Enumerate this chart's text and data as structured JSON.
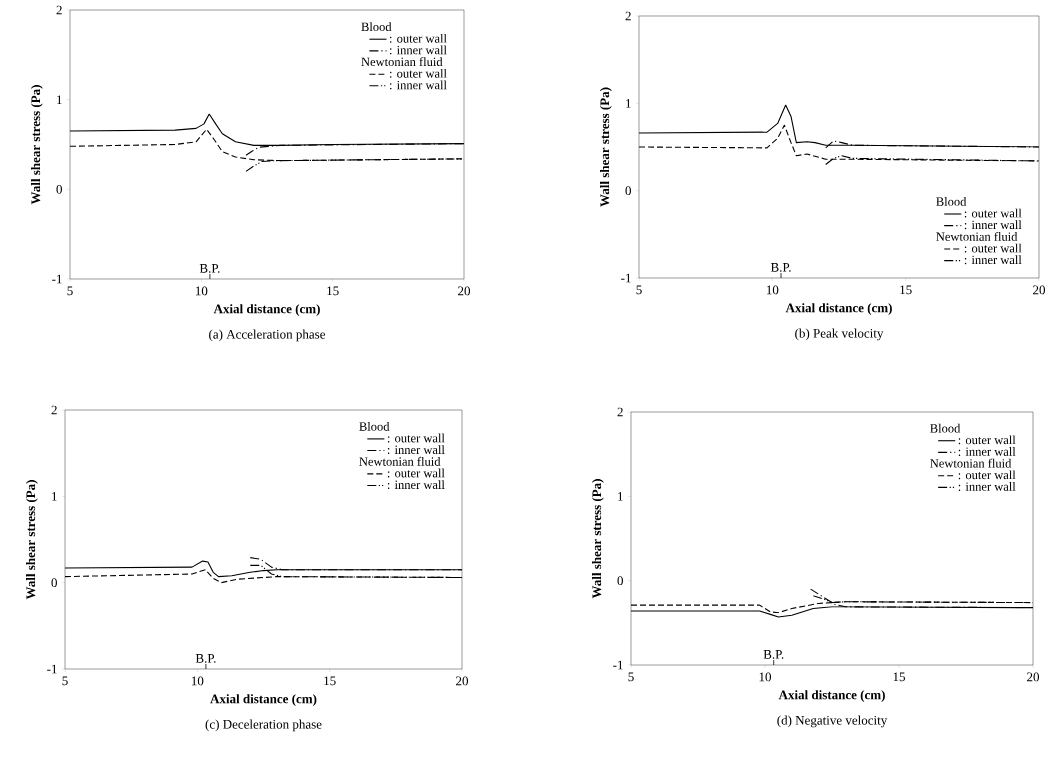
{
  "chart_data": [
    {
      "type": "line",
      "title": "(a)  Acceleration phase",
      "xlabel": "Axial distance (cm)",
      "ylabel": "Wall shear stress (Pa)",
      "xlim": [
        5,
        20
      ],
      "ylim": [
        -1,
        2
      ],
      "xticks": [
        5,
        10,
        15,
        20
      ],
      "yticks": [
        -1,
        0,
        1,
        2
      ],
      "legend": "top right",
      "annotations": [
        "Blood",
        "Newtonian fluid",
        "B.P."
      ],
      "series": [
        {
          "name": ": outer wall",
          "color": "#000000",
          "line_style": "solid",
          "x": [
            5,
            9,
            9.8,
            10.1,
            10.3,
            10.5,
            10.8,
            11.3,
            12,
            13,
            15,
            20
          ],
          "values": [
            0.65,
            0.66,
            0.68,
            0.73,
            0.84,
            0.75,
            0.62,
            0.53,
            0.49,
            0.49,
            0.5,
            0.51
          ]
        },
        {
          "name": ": inner wall",
          "color": "#000000",
          "line_style": "dashdot",
          "x": [
            11.7,
            11.9,
            12.2,
            12.6,
            13,
            20
          ],
          "values": [
            0.38,
            0.42,
            0.47,
            0.48,
            0.49,
            0.51
          ]
        },
        {
          "name": ": outer wall",
          "color": "#000000",
          "line_style": "dashed",
          "x": [
            5,
            9,
            9.8,
            10.2,
            10.5,
            10.8,
            11.3,
            12,
            13,
            20
          ],
          "values": [
            0.48,
            0.5,
            0.53,
            0.67,
            0.55,
            0.42,
            0.36,
            0.33,
            0.32,
            0.34
          ]
        },
        {
          "name": ": inner wall",
          "color": "#000000",
          "line_style": "dashdotdot",
          "x": [
            11.7,
            12,
            12.3,
            12.8,
            13,
            20
          ],
          "values": [
            0.2,
            0.26,
            0.31,
            0.32,
            0.32,
            0.34
          ]
        }
      ]
    },
    {
      "type": "line",
      "title": "(b)  Peak velocity",
      "xlabel": "Axial distance (cm)",
      "ylabel": "Wall shear stress (Pa)",
      "xlim": [
        5,
        20
      ],
      "ylim": [
        -1,
        2
      ],
      "xticks": [
        5,
        10,
        15,
        20
      ],
      "yticks": [
        -1,
        0,
        1,
        2
      ],
      "legend": "bottom right",
      "annotations": [
        "Blood",
        "Newtonian fluid",
        "B.P."
      ],
      "series": [
        {
          "name": ": outer wall",
          "color": "#000000",
          "line_style": "solid",
          "x": [
            5,
            9.8,
            10.2,
            10.5,
            10.7,
            10.9,
            11.3,
            11.6,
            12,
            13,
            20
          ],
          "values": [
            0.66,
            0.67,
            0.77,
            0.98,
            0.85,
            0.55,
            0.56,
            0.55,
            0.52,
            0.52,
            0.5
          ]
        },
        {
          "name": ": inner wall",
          "color": "#000000",
          "line_style": "dashdot",
          "x": [
            12,
            12.3,
            12.6,
            13,
            20
          ],
          "values": [
            0.49,
            0.57,
            0.55,
            0.52,
            0.5
          ]
        },
        {
          "name": ": outer wall",
          "color": "#000000",
          "line_style": "dashed",
          "x": [
            5,
            9.8,
            10.2,
            10.45,
            10.7,
            10.9,
            11.3,
            12,
            13,
            20
          ],
          "values": [
            0.5,
            0.49,
            0.6,
            0.75,
            0.55,
            0.4,
            0.42,
            0.36,
            0.36,
            0.34
          ]
        },
        {
          "name": ": inner wall",
          "color": "#000000",
          "line_style": "dashdotdot",
          "x": [
            12,
            12.3,
            12.6,
            13,
            20
          ],
          "values": [
            0.3,
            0.37,
            0.4,
            0.37,
            0.34
          ]
        }
      ]
    },
    {
      "type": "line",
      "title": "(c)  Deceleration phase",
      "xlabel": "Axial distance (cm)",
      "ylabel": "Wall shear stress (Pa)",
      "xlim": [
        5,
        20
      ],
      "ylim": [
        -1,
        2
      ],
      "xticks": [
        5,
        10,
        15,
        20
      ],
      "yticks": [
        -1,
        0,
        1,
        2
      ],
      "legend": "top right",
      "annotations": [
        "Blood",
        "Newtonian fluid",
        "B.P."
      ],
      "series": [
        {
          "name": ": outer wall",
          "color": "#000000",
          "line_style": "solid",
          "x": [
            5,
            9.8,
            10.2,
            10.4,
            10.6,
            10.8,
            11.3,
            12,
            12.5,
            13,
            20
          ],
          "values": [
            0.17,
            0.18,
            0.25,
            0.24,
            0.12,
            0.07,
            0.08,
            0.12,
            0.14,
            0.15,
            0.15
          ]
        },
        {
          "name": ": inner wall",
          "color": "#000000",
          "line_style": "dashdot",
          "x": [
            12,
            12.4,
            12.8,
            13.2,
            20
          ],
          "values": [
            0.29,
            0.27,
            0.18,
            0.15,
            0.15
          ]
        },
        {
          "name": ": outer wall",
          "color": "#000000",
          "line_style": "dashed",
          "x": [
            5,
            9.8,
            10.3,
            10.6,
            10.9,
            11.5,
            12.5,
            13,
            20
          ],
          "values": [
            0.07,
            0.1,
            0.15,
            0.05,
            0.0,
            0.04,
            0.06,
            0.07,
            0.06
          ]
        },
        {
          "name": ": inner wall",
          "color": "#000000",
          "line_style": "dashdotdot",
          "x": [
            12,
            12.4,
            12.8,
            13.2,
            20
          ],
          "values": [
            0.2,
            0.2,
            0.1,
            0.07,
            0.06
          ]
        }
      ]
    },
    {
      "type": "line",
      "title": "(d)  Negative velocity",
      "xlabel": "Axial distance (cm)",
      "ylabel": "Wall shear stress (Pa)",
      "xlim": [
        5,
        20
      ],
      "ylim": [
        -1,
        2
      ],
      "xticks": [
        5,
        10,
        15,
        20
      ],
      "yticks": [
        -1,
        0,
        1,
        2
      ],
      "legend": "top right",
      "annotations": [
        "Blood",
        "Newtonian fluid",
        "B.P."
      ],
      "series": [
        {
          "name": ": outer wall",
          "color": "#000000",
          "line_style": "solid",
          "x": [
            5,
            9.8,
            10.2,
            10.5,
            11,
            11.8,
            12.5,
            13,
            20
          ],
          "values": [
            -0.36,
            -0.36,
            -0.4,
            -0.43,
            -0.41,
            -0.33,
            -0.31,
            -0.31,
            -0.32
          ]
        },
        {
          "name": ": inner wall",
          "color": "#000000",
          "line_style": "dashdot",
          "x": [
            11.7,
            12.2,
            12.6,
            13,
            20
          ],
          "values": [
            -0.1,
            -0.2,
            -0.28,
            -0.31,
            -0.32
          ]
        },
        {
          "name": ": outer wall",
          "color": "#000000",
          "line_style": "dashed",
          "x": [
            5,
            9.8,
            10.2,
            10.5,
            11,
            12,
            13,
            20
          ],
          "values": [
            -0.29,
            -0.29,
            -0.37,
            -0.38,
            -0.33,
            -0.27,
            -0.25,
            -0.26
          ]
        },
        {
          "name": ": inner wall",
          "color": "#000000",
          "line_style": "dashdotdot",
          "x": [
            11.8,
            12.2,
            12.5,
            13,
            20
          ],
          "values": [
            -0.18,
            -0.22,
            -0.26,
            -0.25,
            -0.26
          ]
        }
      ]
    }
  ]
}
